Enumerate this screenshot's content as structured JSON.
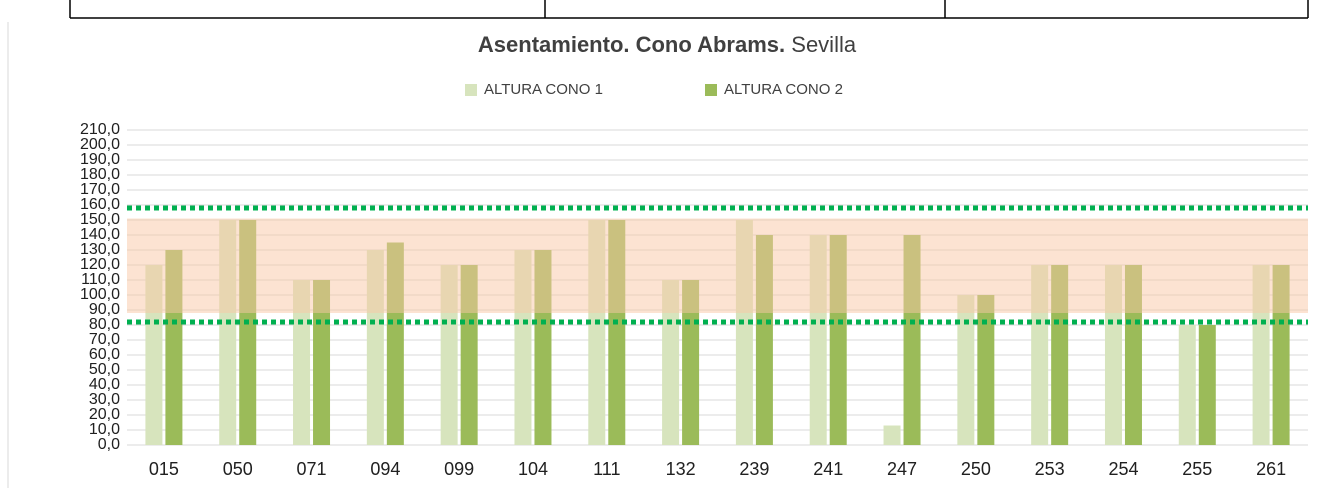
{
  "chart_data": {
    "type": "bar",
    "title": "Asentamiento. Cono Abrams.",
    "subtitle": "Sevilla",
    "categories": [
      "015",
      "050",
      "071",
      "094",
      "099",
      "104",
      "111",
      "132",
      "239",
      "241",
      "247",
      "250",
      "253",
      "254",
      "255",
      "261"
    ],
    "series": [
      {
        "name": "ALTURA CONO 1",
        "color": "#d7e4bd",
        "values": [
          120,
          150,
          110,
          130,
          120,
          130,
          150,
          110,
          150,
          140,
          13,
          100,
          120,
          120,
          80,
          120
        ]
      },
      {
        "name": "ALTURA CONO 2",
        "color": "#9bbb59",
        "values": [
          130,
          150,
          110,
          135,
          120,
          130,
          150,
          110,
          140,
          140,
          140,
          100,
          120,
          120,
          80,
          120
        ]
      }
    ],
    "band": [
      88,
      151
    ],
    "reference_lines": [
      158,
      82
    ],
    "ylim": [
      0,
      210
    ],
    "yticks": [
      {
        "value": 0,
        "label": "0,0"
      },
      {
        "value": 10,
        "label": "10,0"
      },
      {
        "value": 20,
        "label": "20,0"
      },
      {
        "value": 30,
        "label": "30,0"
      },
      {
        "value": 40,
        "label": "40,0"
      },
      {
        "value": 50,
        "label": "50,0"
      },
      {
        "value": 60,
        "label": "60,0"
      },
      {
        "value": 70,
        "label": "70,0"
      },
      {
        "value": 80,
        "label": "80,0"
      },
      {
        "value": 90,
        "label": "90,0"
      },
      {
        "value": 100,
        "label": "100,0"
      },
      {
        "value": 110,
        "label": "110,0"
      },
      {
        "value": 120,
        "label": "120,0"
      },
      {
        "value": 130,
        "label": "130,0"
      },
      {
        "value": 140,
        "label": "140,0"
      },
      {
        "value": 150,
        "label": "150,0"
      },
      {
        "value": 160,
        "label": "160,0"
      },
      {
        "value": 170,
        "label": "170,0"
      },
      {
        "value": 180,
        "label": "180,0"
      },
      {
        "value": 190,
        "label": "190,0"
      },
      {
        "value": 200,
        "label": "200,0"
      },
      {
        "value": 210,
        "label": "210,0"
      }
    ],
    "grid": true
  }
}
